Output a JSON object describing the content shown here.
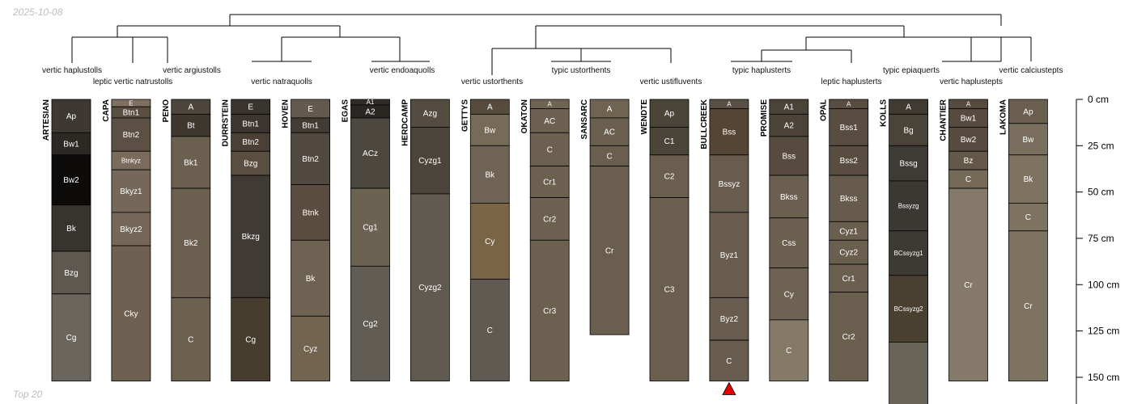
{
  "header": {
    "date": "2025-10-08"
  },
  "footer": {
    "label": "Top 20"
  },
  "chart_data": {
    "type": "soil-profile-sketch",
    "title": "",
    "depth_axis": {
      "unit": "cm",
      "ticks": [
        0,
        25,
        50,
        75,
        100,
        125,
        150
      ],
      "tick_labels": [
        "0 cm",
        "25 cm",
        "50 cm",
        "75 cm",
        "100 cm",
        "125 cm",
        "150 cm"
      ],
      "range": [
        0,
        165
      ]
    },
    "colors": {
      "line": "#000000",
      "marker": "#e60000"
    },
    "marker": {
      "profile": "BULLCREEK",
      "shape": "triangle-up"
    },
    "taxa": [
      {
        "name": "vertic haplustolls",
        "row": 0
      },
      {
        "name": "leptic vertic natrustolls",
        "row": 1
      },
      {
        "name": "vertic argiustolls",
        "row": 0
      },
      {
        "name": "vertic natraquolls",
        "row": 1
      },
      {
        "name": "vertic endoaquolls",
        "row": 0
      },
      {
        "name": "vertic ustorthents",
        "row": 1
      },
      {
        "name": "typic ustorthents",
        "row": 0
      },
      {
        "name": "vertic ustifluvents",
        "row": 1
      },
      {
        "name": "typic haplusterts",
        "row": 0
      },
      {
        "name": "leptic haplusterts",
        "row": 1
      },
      {
        "name": "typic epiaquerts",
        "row": 0
      },
      {
        "name": "vertic haplustepts",
        "row": 1
      },
      {
        "name": "vertic calciustepts",
        "row": 0
      }
    ],
    "profiles": [
      {
        "id": "ARTESIAN",
        "horizons": [
          {
            "name": "Ap",
            "top": 0,
            "bottom": 18,
            "color": "#3e3833"
          },
          {
            "name": "Bw1",
            "top": 18,
            "bottom": 30,
            "color": "#2c2824"
          },
          {
            "name": "Bw2",
            "top": 30,
            "bottom": 57,
            "color": "#0c0b0a"
          },
          {
            "name": "Bk",
            "top": 57,
            "bottom": 82,
            "color": "#37332e"
          },
          {
            "name": "Bzg",
            "top": 82,
            "bottom": 105,
            "color": "#5e5850"
          },
          {
            "name": "Cg",
            "top": 105,
            "bottom": 152,
            "color": "#6a665d"
          }
        ]
      },
      {
        "id": "CAPA",
        "horizons": [
          {
            "name": "E",
            "top": 0,
            "bottom": 4,
            "color": "#807060"
          },
          {
            "name": "Btn1",
            "top": 4,
            "bottom": 10,
            "color": "#5a4e42"
          },
          {
            "name": "Btn2",
            "top": 10,
            "bottom": 28,
            "color": "#5c5044"
          },
          {
            "name": "Btnkyz",
            "top": 28,
            "bottom": 38,
            "color": "#7a6c5c"
          },
          {
            "name": "Bkyz1",
            "top": 38,
            "bottom": 61,
            "color": "#75685a"
          },
          {
            "name": "Bkyz2",
            "top": 61,
            "bottom": 79,
            "color": "#75685a"
          },
          {
            "name": "Cky",
            "top": 79,
            "bottom": 152,
            "color": "#6e6151"
          }
        ]
      },
      {
        "id": "PENO",
        "horizons": [
          {
            "name": "A",
            "top": 0,
            "bottom": 8,
            "color": "#4e463d"
          },
          {
            "name": "Bt",
            "top": 8,
            "bottom": 20,
            "color": "#3e3831"
          },
          {
            "name": "Bk1",
            "top": 20,
            "bottom": 48,
            "color": "#6b5f4f"
          },
          {
            "name": "Bk2",
            "top": 48,
            "bottom": 107,
            "color": "#6b5f4f"
          },
          {
            "name": "C",
            "top": 107,
            "bottom": 152,
            "color": "#6c604f"
          }
        ]
      },
      {
        "id": "DURRSTEIN",
        "horizons": [
          {
            "name": "E",
            "top": 0,
            "bottom": 8,
            "color": "#3a342f"
          },
          {
            "name": "Btn1",
            "top": 8,
            "bottom": 18,
            "color": "#3c3530"
          },
          {
            "name": "Btn2",
            "top": 18,
            "bottom": 28,
            "color": "#4a4036"
          },
          {
            "name": "Bzg",
            "top": 28,
            "bottom": 41,
            "color": "#5a4e40"
          },
          {
            "name": "Bkzg",
            "top": 41,
            "bottom": 107,
            "color": "#3f3a34"
          },
          {
            "name": "Cg",
            "top": 107,
            "bottom": 152,
            "color": "#463d2e"
          }
        ]
      },
      {
        "id": "HOVEN",
        "horizons": [
          {
            "name": "E",
            "top": 0,
            "bottom": 10,
            "color": "#645a50"
          },
          {
            "name": "Btn1",
            "top": 10,
            "bottom": 18,
            "color": "#443b34"
          },
          {
            "name": "Btn2",
            "top": 18,
            "bottom": 46,
            "color": "#514840"
          },
          {
            "name": "Btnk",
            "top": 46,
            "bottom": 76,
            "color": "#5a4d3f"
          },
          {
            "name": "Bk",
            "top": 76,
            "bottom": 117,
            "color": "#6e6252"
          },
          {
            "name": "Cyz",
            "top": 117,
            "bottom": 152,
            "color": "#72644f"
          }
        ]
      },
      {
        "id": "EGAS",
        "horizons": [
          {
            "name": "A1",
            "top": 0,
            "bottom": 3,
            "color": "#312c28"
          },
          {
            "name": "A2",
            "top": 3,
            "bottom": 10,
            "color": "#2a2622"
          },
          {
            "name": "ACz",
            "top": 10,
            "bottom": 48,
            "color": "#4c473f"
          },
          {
            "name": "Cg1",
            "top": 48,
            "bottom": 90,
            "color": "#6b6251"
          },
          {
            "name": "Cg2",
            "top": 90,
            "bottom": 152,
            "color": "#615d55"
          }
        ]
      },
      {
        "id": "HERDCAMP",
        "horizons": [
          {
            "name": "Azg",
            "top": 0,
            "bottom": 15,
            "color": "#554c41"
          },
          {
            "name": "Cyzg1",
            "top": 15,
            "bottom": 51,
            "color": "#4b453b"
          },
          {
            "name": "Cyzg2",
            "top": 51,
            "bottom": 152,
            "color": "#605a50"
          }
        ]
      },
      {
        "id": "GETTYS",
        "horizons": [
          {
            "name": "A",
            "top": 0,
            "bottom": 8,
            "color": "#574b3e"
          },
          {
            "name": "Bw",
            "top": 8,
            "bottom": 25,
            "color": "#766a59"
          },
          {
            "name": "Bk",
            "top": 25,
            "bottom": 56,
            "color": "#6f6455"
          },
          {
            "name": "Cy",
            "top": 56,
            "bottom": 97,
            "color": "#7a6446"
          },
          {
            "name": "C",
            "top": 97,
            "bottom": 152,
            "color": "#605a52"
          }
        ]
      },
      {
        "id": "OKATON",
        "horizons": [
          {
            "name": "A",
            "top": 0,
            "bottom": 5,
            "color": "#6f6452"
          },
          {
            "name": "AC",
            "top": 5,
            "bottom": 18,
            "color": "#6c6050"
          },
          {
            "name": "C",
            "top": 18,
            "bottom": 36,
            "color": "#6c6050"
          },
          {
            "name": "Cr1",
            "top": 36,
            "bottom": 53,
            "color": "#6c6050"
          },
          {
            "name": "Cr2",
            "top": 53,
            "bottom": 76,
            "color": "#6c6050"
          },
          {
            "name": "Cr3",
            "top": 76,
            "bottom": 152,
            "color": "#6c6050"
          }
        ]
      },
      {
        "id": "SANSARC",
        "horizons": [
          {
            "name": "A",
            "top": 0,
            "bottom": 10,
            "color": "#6f6452"
          },
          {
            "name": "AC",
            "top": 10,
            "bottom": 25,
            "color": "#6a5f4e"
          },
          {
            "name": "C",
            "top": 25,
            "bottom": 36,
            "color": "#6a5f4e"
          },
          {
            "name": "Cr",
            "top": 36,
            "bottom": 127,
            "color": "#6a5f4e"
          }
        ]
      },
      {
        "id": "WENDTE",
        "horizons": [
          {
            "name": "Ap",
            "top": 0,
            "bottom": 15,
            "color": "#4b4539"
          },
          {
            "name": "C1",
            "top": 15,
            "bottom": 30,
            "color": "#4b4539"
          },
          {
            "name": "C2",
            "top": 30,
            "bottom": 53,
            "color": "#6a5f4e"
          },
          {
            "name": "C3",
            "top": 53,
            "bottom": 152,
            "color": "#6a5f4e"
          }
        ]
      },
      {
        "id": "BULLCREEK",
        "horizons": [
          {
            "name": "A",
            "top": 0,
            "bottom": 5,
            "color": "#5a4f45"
          },
          {
            "name": "Bss",
            "top": 5,
            "bottom": 30,
            "color": "#554534"
          },
          {
            "name": "Bssyz",
            "top": 30,
            "bottom": 61,
            "color": "#685c4f"
          },
          {
            "name": "Byz1",
            "top": 61,
            "bottom": 107,
            "color": "#685c4f"
          },
          {
            "name": "Byz2",
            "top": 107,
            "bottom": 130,
            "color": "#685c4f"
          },
          {
            "name": "C",
            "top": 130,
            "bottom": 152,
            "color": "#685c4f"
          }
        ]
      },
      {
        "id": "PROMISE",
        "horizons": [
          {
            "name": "A1",
            "top": 0,
            "bottom": 8,
            "color": "#4c4338"
          },
          {
            "name": "A2",
            "top": 8,
            "bottom": 20,
            "color": "#4c4338"
          },
          {
            "name": "Bss",
            "top": 20,
            "bottom": 41,
            "color": "#564b3e"
          },
          {
            "name": "Bkss",
            "top": 41,
            "bottom": 64,
            "color": "#6b6050"
          },
          {
            "name": "Css",
            "top": 64,
            "bottom": 91,
            "color": "#6b6050"
          },
          {
            "name": "Cy",
            "top": 91,
            "bottom": 119,
            "color": "#6e6253"
          },
          {
            "name": "C",
            "top": 119,
            "bottom": 152,
            "color": "#857a66"
          }
        ]
      },
      {
        "id": "OPAL",
        "horizons": [
          {
            "name": "A",
            "top": 0,
            "bottom": 5,
            "color": "#584d40"
          },
          {
            "name": "Bss1",
            "top": 5,
            "bottom": 25,
            "color": "#584d40"
          },
          {
            "name": "Bss2",
            "top": 25,
            "bottom": 41,
            "color": "#584d40"
          },
          {
            "name": "Bkss",
            "top": 41,
            "bottom": 66,
            "color": "#665b4c"
          },
          {
            "name": "Cyz1",
            "top": 66,
            "bottom": 76,
            "color": "#6a5f4f"
          },
          {
            "name": "Cyz2",
            "top": 76,
            "bottom": 89,
            "color": "#6a5f4f"
          },
          {
            "name": "Cr1",
            "top": 89,
            "bottom": 104,
            "color": "#6a5f4f"
          },
          {
            "name": "Cr2",
            "top": 104,
            "bottom": 152,
            "color": "#6a5f4f"
          }
        ]
      },
      {
        "id": "KOLLS",
        "horizons": [
          {
            "name": "A",
            "top": 0,
            "bottom": 8,
            "color": "#403a33"
          },
          {
            "name": "Bg",
            "top": 8,
            "bottom": 25,
            "color": "#4a4438"
          },
          {
            "name": "Bssg",
            "top": 25,
            "bottom": 44,
            "color": "#3e3a35"
          },
          {
            "name": "Bssyzg",
            "top": 44,
            "bottom": 71,
            "color": "#3b3733"
          },
          {
            "name": "BCssyzg1",
            "top": 71,
            "bottom": 95,
            "color": "#3d3a34"
          },
          {
            "name": "BCssyzg2",
            "top": 95,
            "bottom": 131,
            "color": "#49402f"
          },
          {
            "name": "",
            "top": 131,
            "bottom": 165,
            "color": "#6a6458"
          }
        ]
      },
      {
        "id": "CHANTIER",
        "horizons": [
          {
            "name": "A",
            "top": 0,
            "bottom": 5,
            "color": "#564b3e"
          },
          {
            "name": "Bw1",
            "top": 5,
            "bottom": 15,
            "color": "#564b3e"
          },
          {
            "name": "Bw2",
            "top": 15,
            "bottom": 28,
            "color": "#564b3e"
          },
          {
            "name": "Bz",
            "top": 28,
            "bottom": 38,
            "color": "#645848"
          },
          {
            "name": "C",
            "top": 38,
            "bottom": 48,
            "color": "#756a58"
          },
          {
            "name": "Cr",
            "top": 48,
            "bottom": 152,
            "color": "#85796a"
          }
        ]
      },
      {
        "id": "LAKOMA",
        "horizons": [
          {
            "name": "Ap",
            "top": 0,
            "bottom": 13,
            "color": "#6a5f4e"
          },
          {
            "name": "Bw",
            "top": 13,
            "bottom": 30,
            "color": "#7a6f5e"
          },
          {
            "name": "Bk",
            "top": 30,
            "bottom": 56,
            "color": "#7e7361"
          },
          {
            "name": "C",
            "top": 56,
            "bottom": 71,
            "color": "#7e7361"
          },
          {
            "name": "Cr",
            "top": 71,
            "bottom": 152,
            "color": "#7e7361"
          }
        ]
      }
    ]
  }
}
